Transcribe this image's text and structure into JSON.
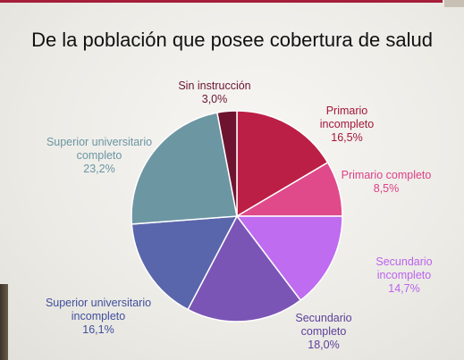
{
  "title": "De la población que posee cobertura de salud",
  "chart_data": {
    "type": "pie",
    "title": "De la población que posee cobertura de salud",
    "start_angle_deg": 0,
    "direction": "clockwise",
    "slices": [
      {
        "label_lines": [
          "Primario",
          "incompleto"
        ],
        "pct_text": "16,5%",
        "value": 16.5,
        "color": "#bc1f45",
        "label_color": "#a3173a"
      },
      {
        "label_lines": [
          "Primario completo"
        ],
        "pct_text": "8,5%",
        "value": 8.5,
        "color": "#e04a8a",
        "label_color": "#dd3f86"
      },
      {
        "label_lines": [
          "Secundario",
          "incompleto"
        ],
        "pct_text": "14,7%",
        "value": 14.7,
        "color": "#bf6cf0",
        "label_color": "#bb63ee"
      },
      {
        "label_lines": [
          "Secundario",
          "completo"
        ],
        "pct_text": "18,0%",
        "value": 18.0,
        "color": "#7b55b6",
        "label_color": "#5c3f9a"
      },
      {
        "label_lines": [
          "Superior universitario",
          "incompleto"
        ],
        "pct_text": "16,1%",
        "value": 16.1,
        "color": "#5a66ab",
        "label_color": "#3f4f9c"
      },
      {
        "label_lines": [
          "Superior universitario",
          "completo"
        ],
        "pct_text": "23,2%",
        "value": 23.2,
        "color": "#6d96a3",
        "label_color": "#6b95a3"
      },
      {
        "label_lines": [
          "Sin instrucción"
        ],
        "pct_text": "3,0%",
        "value": 3.0,
        "color": "#6f1430",
        "label_color": "#6b1530"
      }
    ]
  }
}
